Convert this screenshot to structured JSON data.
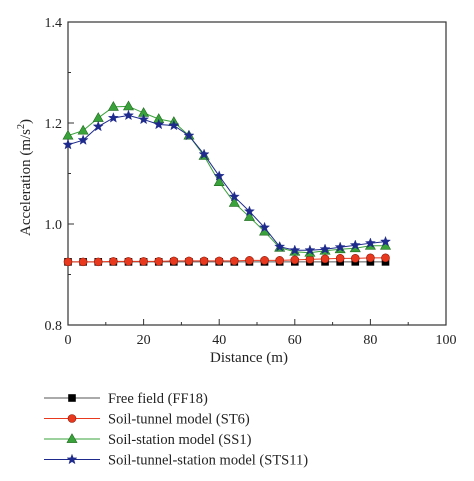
{
  "chart_data": {
    "type": "line",
    "xlabel": "Distance (m)",
    "ylabel_main": "Acceleration (m/s",
    "ylabel_sup": "2",
    "ylabel_tail": ")",
    "xlim": [
      0,
      100
    ],
    "ylim": [
      0.8,
      1.4
    ],
    "xticks": [
      0,
      20,
      40,
      60,
      80,
      100
    ],
    "yticks": [
      0.8,
      1.0,
      1.2,
      1.4
    ],
    "ytick_labels": [
      "0.8",
      "1.0",
      "1.2",
      "1.4"
    ],
    "grid": false,
    "legend_position": "bottom",
    "series": [
      {
        "name": "Free field (FF18)",
        "marker": "square",
        "color": "#000000",
        "x": [
          0,
          4,
          8,
          12,
          16,
          20,
          24,
          28,
          32,
          36,
          40,
          44,
          48,
          52,
          56,
          60,
          64,
          68,
          72,
          76,
          80,
          84
        ],
        "y": [
          0.925,
          0.925,
          0.925,
          0.925,
          0.925,
          0.925,
          0.925,
          0.925,
          0.925,
          0.925,
          0.925,
          0.925,
          0.925,
          0.925,
          0.925,
          0.925,
          0.925,
          0.925,
          0.925,
          0.925,
          0.925,
          0.925
        ]
      },
      {
        "name": "Soil-tunnel model (ST6)",
        "marker": "circle",
        "color": "#e8381e",
        "x": [
          0,
          4,
          8,
          12,
          16,
          20,
          24,
          28,
          32,
          36,
          40,
          44,
          48,
          52,
          56,
          60,
          64,
          68,
          72,
          76,
          80,
          84
        ],
        "y": [
          0.925,
          0.925,
          0.925,
          0.926,
          0.926,
          0.926,
          0.926,
          0.927,
          0.927,
          0.927,
          0.927,
          0.927,
          0.928,
          0.928,
          0.928,
          0.929,
          0.93,
          0.931,
          0.932,
          0.932,
          0.933,
          0.933
        ]
      },
      {
        "name": "Soil-station model (SS1)",
        "marker": "triangle",
        "color": "#3aa23a",
        "x": [
          0,
          4,
          8,
          12,
          16,
          20,
          24,
          28,
          32,
          36,
          40,
          44,
          48,
          52,
          56,
          60,
          64,
          68,
          72,
          76,
          80,
          84
        ],
        "y": [
          1.175,
          1.185,
          1.21,
          1.232,
          1.233,
          1.22,
          1.208,
          1.202,
          1.175,
          1.135,
          1.083,
          1.042,
          1.014,
          0.985,
          0.953,
          0.945,
          0.943,
          0.947,
          0.95,
          0.952,
          0.957,
          0.957
        ]
      },
      {
        "name": "Soil-tunnel-station model (STS11)",
        "marker": "star",
        "color": "#1e2a8c",
        "x": [
          0,
          4,
          8,
          12,
          16,
          20,
          24,
          28,
          32,
          36,
          40,
          44,
          48,
          52,
          56,
          60,
          64,
          68,
          72,
          76,
          80,
          84
        ],
        "y": [
          1.157,
          1.166,
          1.193,
          1.21,
          1.215,
          1.207,
          1.197,
          1.195,
          1.175,
          1.138,
          1.095,
          1.054,
          1.025,
          0.993,
          0.955,
          0.948,
          0.948,
          0.95,
          0.954,
          0.958,
          0.962,
          0.965
        ]
      }
    ]
  }
}
